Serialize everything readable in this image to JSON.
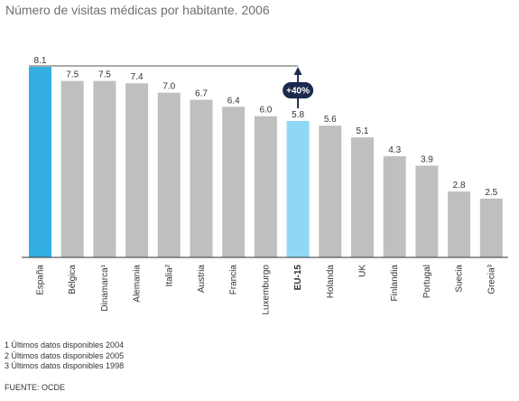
{
  "chart_data": {
    "type": "bar",
    "title": "Número de visitas médicas por habitante. 2006",
    "categories": [
      "España",
      "Bélgica",
      "Dinamarca¹",
      "Alemania",
      "Italia²",
      "Austria",
      "Francia",
      "Luxemburgo",
      "EU-15",
      "Holanda",
      "UK",
      "Finlandia",
      "Portugal",
      "Suecia",
      "Grecia³"
    ],
    "values": [
      8.1,
      7.5,
      7.5,
      7.4,
      7.0,
      6.7,
      6.4,
      6.0,
      5.8,
      5.6,
      5.1,
      4.3,
      3.9,
      2.8,
      2.5
    ],
    "value_labels": [
      "8.1",
      "7.5",
      "7.5",
      "7.4",
      "7.0",
      "6.7",
      "6.4",
      "6.0",
      "5.8",
      "5.6",
      "5.1",
      "4.3",
      "3.9",
      "2.8",
      "2.5"
    ],
    "ylim": [
      0,
      8.1
    ],
    "highlighted": {
      "España": "#33aee2",
      "EU-15": "#8fd8f5"
    },
    "bold_category": "EU-15",
    "default_color": "#bfbfbf",
    "annotation": {
      "label": "+40%",
      "from": "España",
      "to": "EU-15",
      "color": "#1c2a4e"
    }
  },
  "footnotes": [
    "1 Últimos datos disponibles 2004",
    "2 Últimos datos disponibles 2005",
    "3 Últimos datos disponibles 1998"
  ],
  "source": "FUENTE: OCDE"
}
